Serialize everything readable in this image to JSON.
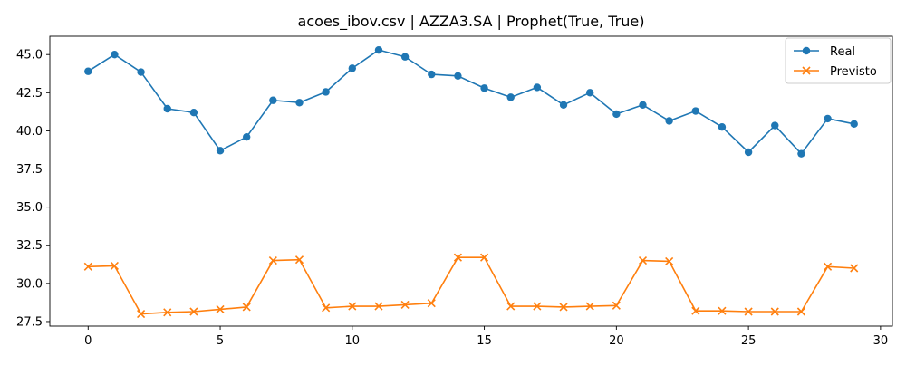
{
  "chart_data": {
    "type": "line",
    "title": "acoes_ibov.csv | AZZA3.SA | Prophet(True, True)",
    "xlabel": "",
    "ylabel": "",
    "xlim": [
      -1.45,
      30.45
    ],
    "ylim": [
      27.2,
      46.2
    ],
    "xticks": [
      0,
      5,
      10,
      15,
      20,
      25,
      30
    ],
    "yticks": [
      27.5,
      30.0,
      32.5,
      35.0,
      37.5,
      40.0,
      42.5,
      45.0
    ],
    "ytick_labels": [
      "27.5",
      "30.0",
      "32.5",
      "35.0",
      "37.5",
      "40.0",
      "42.5",
      "45.0"
    ],
    "grid": false,
    "legend_position": "top-right",
    "x": [
      0,
      1,
      2,
      3,
      4,
      5,
      6,
      7,
      8,
      9,
      10,
      11,
      12,
      13,
      14,
      15,
      16,
      17,
      18,
      19,
      20,
      21,
      22,
      23,
      24,
      25,
      26,
      27,
      28,
      29
    ],
    "series": [
      {
        "name": "Real",
        "color": "#1f77b4",
        "marker": "circle",
        "values": [
          43.9,
          45.0,
          43.85,
          41.45,
          41.2,
          38.7,
          39.6,
          42.0,
          41.85,
          42.55,
          44.1,
          45.3,
          44.85,
          43.7,
          43.6,
          42.8,
          42.2,
          42.85,
          41.7,
          42.5,
          41.1,
          41.7,
          40.65,
          41.3,
          40.25,
          38.6,
          40.35,
          38.5,
          40.8,
          40.45
        ]
      },
      {
        "name": "Previsto",
        "color": "#ff7f0e",
        "marker": "x",
        "values": [
          31.1,
          31.15,
          28.0,
          28.1,
          28.15,
          28.3,
          28.45,
          31.5,
          31.55,
          28.4,
          28.5,
          28.5,
          28.6,
          28.7,
          31.7,
          31.7,
          28.5,
          28.5,
          28.45,
          28.5,
          28.55,
          31.5,
          31.45,
          28.2,
          28.2,
          28.15,
          28.15,
          28.15,
          31.1,
          31.0
        ]
      }
    ]
  }
}
